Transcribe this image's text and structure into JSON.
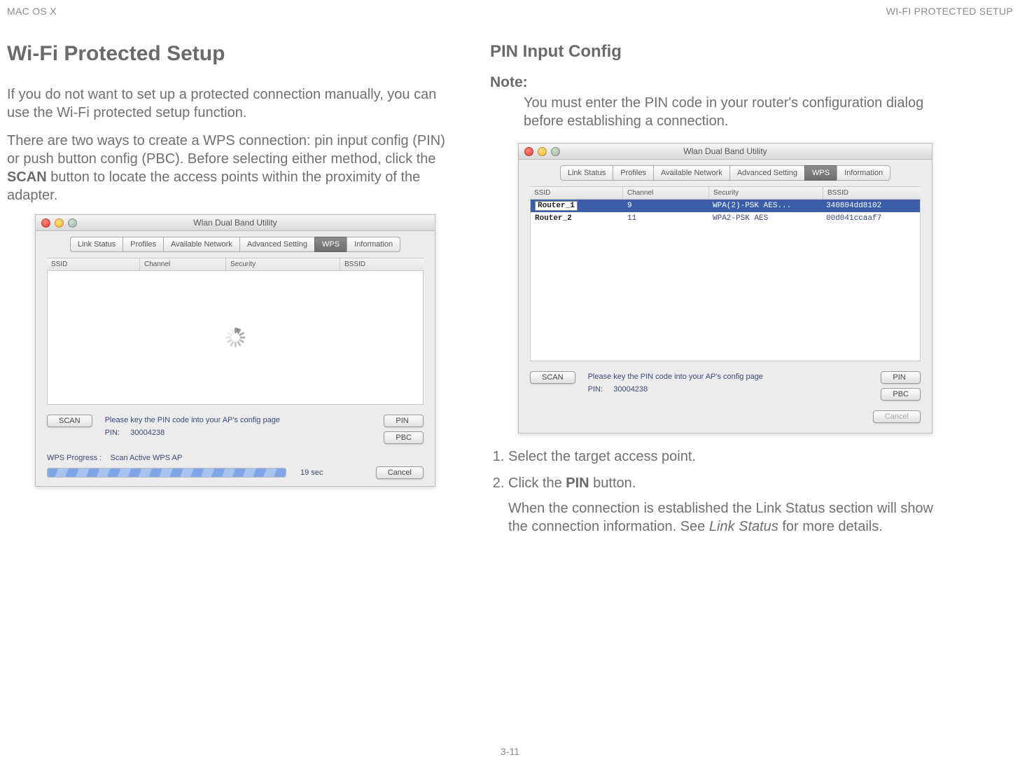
{
  "header": {
    "left": "MAC OS X",
    "right": "WI-FI PROTECTED SETUP"
  },
  "footer": {
    "page": "3-11"
  },
  "left": {
    "title": "Wi-Fi Protected Setup",
    "para1": "If you do not want to set up a protected connection manually, you can use the Wi-Fi protected setup function.",
    "para2a": "There are two ways to create a WPS connection: pin input config (PIN) or push button config (PBC). Before selecting either method, click the ",
    "para2b_bold": "SCAN",
    "para2c": " button to locate the access points within the proximity of the adapter."
  },
  "right": {
    "title": "PIN Input Config",
    "note_label": "Note:",
    "note_body": "You must enter the PIN code in your router's configuration dialog before establishing a connection.",
    "step1": "Select the target access point.",
    "step2a": "Click the ",
    "step2b_bold": "PIN",
    "step2c": " button.",
    "step2_sub_a": "When the connection is established the Link Status section will show the connection information. See ",
    "step2_sub_italic": "Link Status",
    "step2_sub_b": " for more details."
  },
  "dialog": {
    "title": "Wlan Dual Band Utility",
    "tabs": [
      "Link Status",
      "Profiles",
      "Available Network",
      "Advanced Setting",
      "WPS",
      "Information"
    ],
    "active_tab_index": 4,
    "columns": {
      "ssid": "SSID",
      "channel": "Channel",
      "security": "Security",
      "bssid": "BSSID"
    },
    "scan_btn": "SCAN",
    "pin_msg": "Please key the PIN code into your AP's config page",
    "pin_label": "PIN:",
    "pin_value": "30004238",
    "pin_btn": "PIN",
    "pbc_btn": "PBC",
    "cancel_btn": "Cancel",
    "progress_label": "WPS Progress :",
    "progress_status": "Scan Active WPS AP",
    "progress_time": "19 sec"
  },
  "dialog2": {
    "rows": [
      {
        "ssid": "Router_1",
        "chan": "9",
        "sec": "WPA(2)-PSK AES...",
        "bssid": "340804dd8102",
        "selected": true
      },
      {
        "ssid": "Router_2",
        "chan": "11",
        "sec": "WPA2-PSK AES",
        "bssid": "00d041ccaaf7",
        "selected": false
      }
    ]
  },
  "style": {
    "body_color": "#707070",
    "heading_color": "#6a6a6a",
    "selected_row_bg": "#3b5ea9",
    "dialog_link_color": "#3b4a7a"
  }
}
